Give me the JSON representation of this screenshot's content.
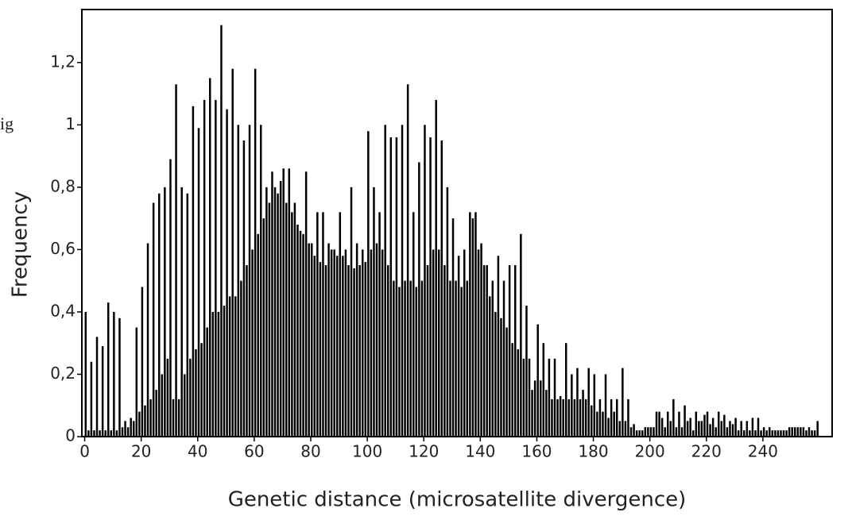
{
  "chart_data": {
    "type": "histogram",
    "annotations": [
      "ig"
    ],
    "xlabel": "Genetic distance (microsatellite divergence)",
    "ylabel": "Frequency",
    "color": "#000000",
    "xlim": [
      -1,
      264.5
    ],
    "ylim": [
      0,
      1.37
    ],
    "xticks": [
      0,
      20,
      40,
      60,
      80,
      100,
      120,
      140,
      160,
      180,
      200,
      220,
      240
    ],
    "yticks": [
      0,
      {
        "value": 0.2,
        "label": "0,2"
      },
      {
        "value": 0.4,
        "label": "0,4"
      },
      {
        "value": 0.6,
        "label": "0,6"
      },
      {
        "value": 0.8,
        "label": "0,8"
      },
      1,
      {
        "value": 1.2,
        "label": "1,2"
      }
    ],
    "bins": [
      0,
      1,
      2,
      3,
      4,
      5,
      6,
      7,
      8,
      9,
      10,
      11,
      12,
      13,
      14,
      15,
      16,
      17,
      18,
      19,
      20,
      21,
      22,
      23,
      24,
      25,
      26,
      27,
      28,
      29,
      30,
      31,
      32,
      33,
      34,
      35,
      36,
      37,
      38,
      39,
      40,
      41,
      42,
      43,
      44,
      45,
      46,
      47,
      48,
      49,
      50,
      51,
      52,
      53,
      54,
      55,
      56,
      57,
      58,
      59,
      60,
      61,
      62,
      63,
      64,
      65,
      66,
      67,
      68,
      69,
      70,
      71,
      72,
      73,
      74,
      75,
      76,
      77,
      78,
      79,
      80,
      81,
      82,
      83,
      84,
      85,
      86,
      87,
      88,
      89,
      90,
      91,
      92,
      93,
      94,
      95,
      96,
      97,
      98,
      99,
      100,
      101,
      102,
      103,
      104,
      105,
      106,
      107,
      108,
      109,
      110,
      111,
      112,
      113,
      114,
      115,
      116,
      117,
      118,
      119,
      120,
      121,
      122,
      123,
      124,
      125,
      126,
      127,
      128,
      129,
      130,
      131,
      132,
      133,
      134,
      135,
      136,
      137,
      138,
      139,
      140,
      141,
      142,
      143,
      144,
      145,
      146,
      147,
      148,
      149,
      150,
      151,
      152,
      153,
      154,
      155,
      156,
      157,
      158,
      159,
      160,
      161,
      162,
      163,
      164,
      165,
      166,
      167,
      168,
      169,
      170,
      171,
      172,
      173,
      174,
      175,
      176,
      177,
      178,
      179,
      180,
      181,
      182,
      183,
      184,
      185,
      186,
      187,
      188,
      189,
      190,
      191,
      192,
      193,
      194,
      195,
      196,
      197,
      198,
      199,
      200,
      201,
      202,
      203,
      204,
      205,
      206,
      207,
      208,
      209,
      210,
      211,
      212,
      213,
      214,
      215,
      216,
      217,
      218,
      219,
      220,
      221,
      222,
      223,
      224,
      225,
      226,
      227,
      228,
      229,
      230,
      231,
      232,
      233,
      234,
      235,
      236,
      237,
      238,
      239,
      240,
      241,
      242,
      243,
      244,
      245,
      246,
      247,
      248,
      249,
      250,
      251,
      252,
      253,
      254,
      255,
      256,
      257,
      258,
      259,
      260
    ],
    "values": [
      0.4,
      0.02,
      0.24,
      0.02,
      0.32,
      0.02,
      0.29,
      0.02,
      0.43,
      0.02,
      0.4,
      0.02,
      0.38,
      0.03,
      0.05,
      0.03,
      0.06,
      0.05,
      0.35,
      0.08,
      0.48,
      0.1,
      0.62,
      0.12,
      0.75,
      0.15,
      0.78,
      0.2,
      0.8,
      0.25,
      0.89,
      0.12,
      1.13,
      0.12,
      0.8,
      0.2,
      0.78,
      0.25,
      1.06,
      0.28,
      0.99,
      0.3,
      1.08,
      0.35,
      1.15,
      0.4,
      1.08,
      0.4,
      1.32,
      0.42,
      1.05,
      0.45,
      1.18,
      0.45,
      1.0,
      0.5,
      0.95,
      0.55,
      1.0,
      0.6,
      1.18,
      0.65,
      1.0,
      0.7,
      0.8,
      0.75,
      0.85,
      0.8,
      0.78,
      0.82,
      0.86,
      0.75,
      0.86,
      0.72,
      0.75,
      0.68,
      0.66,
      0.65,
      0.85,
      0.62,
      0.62,
      0.58,
      0.72,
      0.56,
      0.72,
      0.55,
      0.62,
      0.6,
      0.6,
      0.58,
      0.72,
      0.58,
      0.6,
      0.55,
      0.8,
      0.54,
      0.62,
      0.55,
      0.6,
      0.56,
      0.98,
      0.6,
      0.8,
      0.62,
      0.72,
      0.6,
      1.0,
      0.55,
      0.96,
      0.5,
      0.96,
      0.48,
      1.0,
      0.5,
      1.13,
      0.5,
      0.72,
      0.48,
      0.88,
      0.5,
      1.0,
      0.55,
      0.96,
      0.6,
      1.08,
      0.6,
      0.95,
      0.55,
      0.8,
      0.5,
      0.7,
      0.5,
      0.58,
      0.48,
      0.6,
      0.5,
      0.72,
      0.7,
      0.72,
      0.6,
      0.62,
      0.55,
      0.55,
      0.45,
      0.5,
      0.4,
      0.58,
      0.38,
      0.5,
      0.35,
      0.55,
      0.3,
      0.55,
      0.28,
      0.65,
      0.25,
      0.42,
      0.25,
      0.15,
      0.18,
      0.36,
      0.18,
      0.3,
      0.15,
      0.25,
      0.12,
      0.25,
      0.12,
      0.13,
      0.12,
      0.3,
      0.12,
      0.2,
      0.12,
      0.22,
      0.12,
      0.15,
      0.12,
      0.22,
      0.1,
      0.2,
      0.08,
      0.12,
      0.08,
      0.2,
      0.06,
      0.12,
      0.08,
      0.12,
      0.05,
      0.22,
      0.05,
      0.12,
      0.03,
      0.04,
      0.02,
      0.02,
      0.02,
      0.03,
      0.03,
      0.03,
      0.03,
      0.08,
      0.08,
      0.06,
      0.03,
      0.08,
      0.05,
      0.12,
      0.03,
      0.08,
      0.03,
      0.1,
      0.05,
      0.06,
      0.02,
      0.08,
      0.05,
      0.05,
      0.07,
      0.08,
      0.04,
      0.06,
      0.03,
      0.08,
      0.05,
      0.07,
      0.03,
      0.05,
      0.04,
      0.06,
      0.02,
      0.05,
      0.02,
      0.05,
      0.02,
      0.06,
      0.02,
      0.06,
      0.02,
      0.03,
      0.02,
      0.03,
      0.02,
      0.02,
      0.02,
      0.02,
      0.02,
      0.02,
      0.03,
      0.03,
      0.03,
      0.03,
      0.03,
      0.03,
      0.02,
      0.03,
      0.02,
      0.02,
      0.05
    ]
  }
}
